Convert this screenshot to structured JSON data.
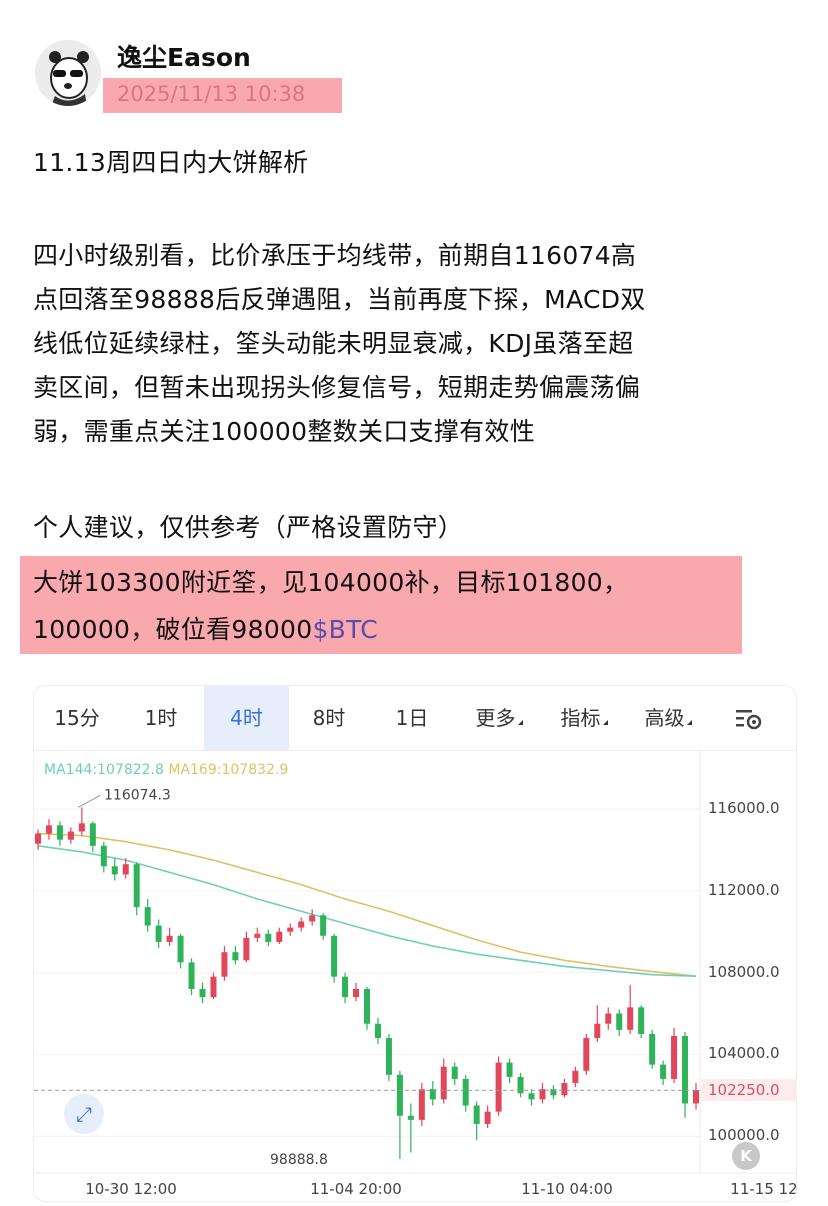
{
  "post": {
    "author": "逸尘Eason",
    "timestamp": "2025/11/13 10:38",
    "title": "11.13周四日内大饼解析",
    "body_lines": [
      "四小时级别看，比价承压于均线带，前期自116074高",
      "点回落至98888后反弹遇阻，当前再度下探，MACD双",
      "线低位延续绿柱，筌头动能未明显衰减，KDJ虽落至超",
      "卖区间，但暂未出现拐头修复信号，短期走势偏震荡偏",
      "弱，需重点关注100000整数关口支撑有效性"
    ],
    "advice_heading": "个人建议，仅供参考（严格设置防守）",
    "advice_line1": "大饼103300附近筌，见104000补，目标101800，",
    "advice_line2": "100000，破位看98000",
    "ticker": "$BTC"
  },
  "chart_widget": {
    "tabs": [
      {
        "label": "15分",
        "active": false
      },
      {
        "label": "1时",
        "active": false
      },
      {
        "label": "4时",
        "active": true
      },
      {
        "label": "8时",
        "active": false
      },
      {
        "label": "1日",
        "active": false
      },
      {
        "label": "更多",
        "active": false,
        "dropdown": true
      },
      {
        "label": "指标",
        "active": false,
        "dropdown": true
      },
      {
        "label": "高级",
        "active": false,
        "dropdown": true
      }
    ],
    "settings_icon": "chart-settings-icon",
    "expand_icon": "expand-icon",
    "back_icon": "scroll-to-latest-icon"
  },
  "chart_data": {
    "type": "candlestick",
    "colors": {
      "up": "#e0475a",
      "down": "#2fb35a",
      "ma144": "#6fcfb8",
      "ma169": "#e0c063"
    },
    "ma_legend": {
      "ma144": "MA144:107822.8",
      "ma169": "MA169:107832.9"
    },
    "y_ticks": [
      "116000.0",
      "112000.0",
      "108000.0",
      "104000.0",
      "100000.0"
    ],
    "y_tick_values": [
      116000,
      112000,
      108000,
      104000,
      100000
    ],
    "ylim": [
      98500,
      117000
    ],
    "current_price": {
      "label": "102250.0",
      "value": 102250
    },
    "high_label": "116074.3",
    "low_label": "98888.8",
    "x_ticks": [
      "10-30 12:00",
      "11-04 20:00",
      "11-10 04:00",
      "11-15 12"
    ],
    "candles": [
      [
        114300,
        115000,
        114000,
        114800
      ],
      [
        114800,
        115500,
        114500,
        115200
      ],
      [
        115200,
        115400,
        114200,
        114500
      ],
      [
        114500,
        115100,
        114300,
        114900
      ],
      [
        114900,
        116074.3,
        114700,
        115300
      ],
      [
        115300,
        115400,
        113900,
        114200
      ],
      [
        114200,
        114400,
        112900,
        113200
      ],
      [
        113200,
        113600,
        112500,
        112800
      ],
      [
        112800,
        113600,
        112600,
        113300
      ],
      [
        113300,
        113400,
        110800,
        111200
      ],
      [
        111200,
        111600,
        110000,
        110300
      ],
      [
        110300,
        110600,
        109200,
        109500
      ],
      [
        109500,
        110200,
        109300,
        109800
      ],
      [
        109800,
        109900,
        108200,
        108500
      ],
      [
        108500,
        108700,
        106900,
        107200
      ],
      [
        107200,
        107500,
        106500,
        106800
      ],
      [
        106800,
        108000,
        106700,
        107800
      ],
      [
        107800,
        109300,
        107600,
        109000
      ],
      [
        109000,
        109300,
        108400,
        108600
      ],
      [
        108600,
        110000,
        108500,
        109700
      ],
      [
        109700,
        110200,
        109500,
        109900
      ],
      [
        109900,
        110100,
        109300,
        109500
      ],
      [
        109500,
        110200,
        109400,
        110000
      ],
      [
        110000,
        110400,
        109800,
        110200
      ],
      [
        110200,
        110700,
        110000,
        110500
      ],
      [
        110500,
        111100,
        110300,
        110800
      ],
      [
        110800,
        110900,
        109600,
        109800
      ],
      [
        109800,
        109900,
        107500,
        107800
      ],
      [
        107800,
        108000,
        106500,
        106800
      ],
      [
        106800,
        107500,
        106600,
        107200
      ],
      [
        107200,
        107300,
        105200,
        105500
      ],
      [
        105500,
        105800,
        104500,
        104800
      ],
      [
        104800,
        105000,
        102700,
        103000
      ],
      [
        103000,
        103200,
        98888.8,
        101000
      ],
      [
        101000,
        101600,
        99200,
        100800
      ],
      [
        100800,
        102600,
        100500,
        102300
      ],
      [
        102300,
        102700,
        101500,
        101800
      ],
      [
        101800,
        103800,
        101600,
        103400
      ],
      [
        103400,
        103600,
        102500,
        102800
      ],
      [
        102800,
        103000,
        101200,
        101500
      ],
      [
        101500,
        101700,
        99800,
        100600
      ],
      [
        100600,
        101500,
        100400,
        101200
      ],
      [
        101200,
        103900,
        101000,
        103600
      ],
      [
        103600,
        103800,
        102600,
        102900
      ],
      [
        102900,
        103100,
        101900,
        102100
      ],
      [
        102100,
        102300,
        101500,
        101800
      ],
      [
        101800,
        102600,
        101600,
        102300
      ],
      [
        102300,
        102500,
        101800,
        102000
      ],
      [
        102000,
        102800,
        101900,
        102600
      ],
      [
        102600,
        103400,
        102400,
        103200
      ],
      [
        103200,
        105000,
        103000,
        104800
      ],
      [
        104800,
        106400,
        104600,
        105500
      ],
      [
        105500,
        106300,
        105200,
        106000
      ],
      [
        106000,
        106200,
        104900,
        105200
      ],
      [
        105200,
        107400,
        105000,
        106300
      ],
      [
        106300,
        106400,
        104800,
        105000
      ],
      [
        105000,
        105200,
        103300,
        103500
      ],
      [
        103500,
        103700,
        102500,
        102800
      ],
      [
        102800,
        105300,
        102600,
        104900
      ],
      [
        104900,
        105100,
        100900,
        101600
      ],
      [
        101600,
        102600,
        101300,
        102250
      ]
    ],
    "ma144": [
      114200,
      113900,
      113500,
      112900,
      112300,
      111600,
      111000,
      110400,
      109800,
      109300,
      108900,
      108600,
      108300,
      108100,
      107900,
      107822.8
    ],
    "ma169": [
      114800,
      114700,
      114400,
      114000,
      113500,
      112900,
      112300,
      111600,
      111000,
      110300,
      109600,
      109000,
      108600,
      108300,
      108050,
      107832.9
    ]
  }
}
